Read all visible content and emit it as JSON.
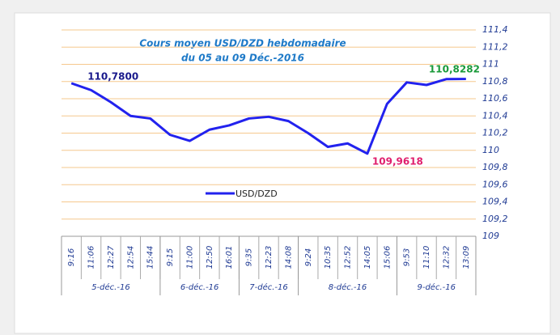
{
  "chart_data": {
    "type": "line",
    "title": "Cours moyen  USD/DZD  hebdomadaire",
    "subtitle": "du 05 au 09 Déc.-2016",
    "categories": [
      "9:16",
      "11:06",
      "12:27",
      "12:54",
      "15:44",
      "9:15",
      "11:00",
      "12:50",
      "16:01",
      "9:35",
      "12:23",
      "14:08",
      "9:24",
      "10:35",
      "12:52",
      "14:05",
      "15:06",
      "9:53",
      "11:10",
      "12:32",
      "13:09"
    ],
    "groups": [
      {
        "label": "5-déc.-16",
        "count": 5
      },
      {
        "label": "6-déc.-16",
        "count": 4
      },
      {
        "label": "7-déc.-16",
        "count": 3
      },
      {
        "label": "8-déc.-16",
        "count": 5
      },
      {
        "label": "9-déc.-16",
        "count": 4
      }
    ],
    "series": [
      {
        "name": "USD/DZD",
        "color": "#2222ee",
        "values": [
          110.78,
          110.7,
          110.56,
          110.4,
          110.37,
          110.18,
          110.11,
          110.24,
          110.29,
          110.37,
          110.39,
          110.34,
          110.2,
          110.04,
          110.08,
          109.9618,
          110.54,
          110.79,
          110.76,
          110.8282,
          110.83
        ],
        "value_labels": [
          "110,7800",
          null,
          null,
          null,
          null,
          null,
          null,
          null,
          null,
          null,
          null,
          null,
          null,
          null,
          null,
          "109,9618",
          null,
          null,
          null,
          "110,8282",
          null
        ],
        "value_label_colors": [
          "#1a1a8c",
          null,
          null,
          null,
          null,
          null,
          null,
          null,
          null,
          null,
          null,
          null,
          null,
          null,
          null,
          "#e0206e",
          null,
          null,
          null,
          "#1a9a3a",
          null
        ]
      }
    ],
    "ylim": [
      109,
      111.4
    ],
    "yticks": [
      109,
      {
        "value": 109.2,
        "label": "109,2"
      },
      {
        "value": 109.4,
        "label": "109,4"
      },
      {
        "value": 109.6,
        "label": "109,6"
      },
      {
        "value": 109.8,
        "label": "109,8"
      },
      110,
      {
        "value": 110.2,
        "label": "110,2"
      },
      {
        "value": 110.4,
        "label": "110,4"
      },
      {
        "value": 110.6,
        "label": "110,6"
      },
      {
        "value": 110.8,
        "label": "110,8"
      },
      111,
      {
        "value": 111.2,
        "label": "111,2"
      },
      {
        "value": 111.4,
        "label": "111,4"
      }
    ],
    "grid": true,
    "grid_color": "#f6c88e"
  }
}
